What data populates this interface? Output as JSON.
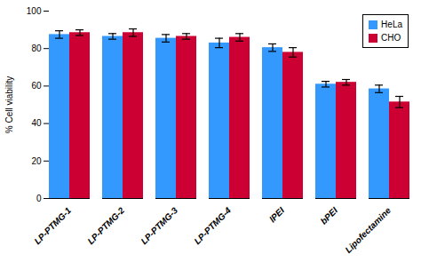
{
  "chart_data": {
    "type": "bar",
    "categories": [
      "LP-PTMG-1",
      "LP-PTMG-2",
      "LP-PTMG-3",
      "LP-PTMG-4",
      "lPEI",
      "bPEI",
      "Lipofectamine"
    ],
    "series": [
      {
        "name": "HeLa",
        "color": "#3399FF",
        "values": [
          87.5,
          86.5,
          85.5,
          83.0,
          80.5,
          61.0,
          58.5
        ],
        "errors": [
          2.0,
          1.5,
          2.0,
          2.5,
          2.0,
          1.5,
          2.0
        ]
      },
      {
        "name": "CHO",
        "color": "#CC0033",
        "values": [
          88.5,
          88.5,
          86.5,
          86.0,
          78.0,
          62.0,
          51.5
        ],
        "errors": [
          1.5,
          2.0,
          1.5,
          2.0,
          2.5,
          1.5,
          3.0
        ]
      }
    ],
    "ylabel": "% Cell viability",
    "ylim": [
      0,
      100
    ],
    "yticks": [
      0,
      20,
      40,
      60,
      80,
      100
    ],
    "grid": false,
    "legend": "upper right"
  }
}
